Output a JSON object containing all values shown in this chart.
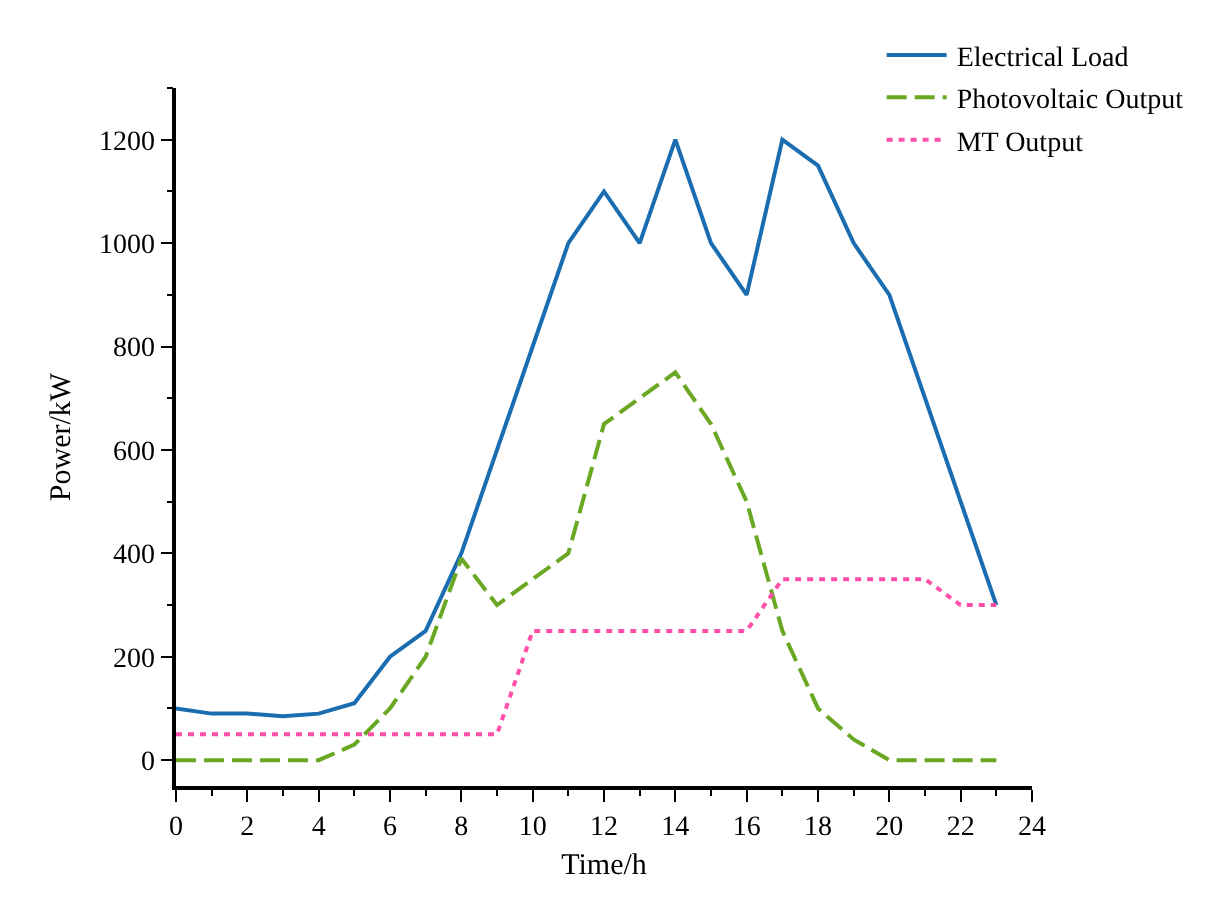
{
  "chart_data": {
    "type": "line",
    "xlabel": "Time/h",
    "ylabel": "Power/kW",
    "x": [
      0,
      1,
      2,
      3,
      4,
      5,
      6,
      7,
      8,
      9,
      10,
      11,
      12,
      13,
      14,
      15,
      16,
      17,
      18,
      19,
      20,
      21,
      22,
      23
    ],
    "series": [
      {
        "name": "Electrical Load",
        "color": "#1a6db0",
        "line_style": "solid",
        "values": [
          100,
          90,
          90,
          85,
          90,
          110,
          200,
          250,
          400,
          600,
          800,
          1000,
          1100,
          1000,
          1200,
          1000,
          900,
          1200,
          1150,
          1000,
          900,
          700,
          500,
          300
        ]
      },
      {
        "name": "Photovoltaic Output",
        "color": "#6aa823",
        "line_style": "dashed",
        "values": [
          0,
          0,
          0,
          0,
          0,
          30,
          100,
          200,
          390,
          300,
          350,
          400,
          650,
          700,
          750,
          650,
          500,
          250,
          100,
          40,
          0,
          0,
          0,
          0
        ]
      },
      {
        "name": "MT Output",
        "color": "#ff4fa8",
        "line_style": "dotted",
        "values": [
          50,
          50,
          50,
          50,
          50,
          50,
          50,
          50,
          50,
          50,
          250,
          250,
          250,
          250,
          250,
          250,
          250,
          350,
          350,
          350,
          350,
          350,
          300,
          300
        ]
      }
    ],
    "xlim": [
      0,
      24
    ],
    "xticks": [
      0,
      2,
      4,
      6,
      8,
      10,
      12,
      14,
      16,
      18,
      20,
      22,
      24
    ],
    "ylim": [
      -50,
      1300
    ],
    "yticks": [
      0,
      200,
      400,
      600,
      800,
      1000,
      1200
    ],
    "grid": false,
    "legend": "top right",
    "marker": "none"
  }
}
